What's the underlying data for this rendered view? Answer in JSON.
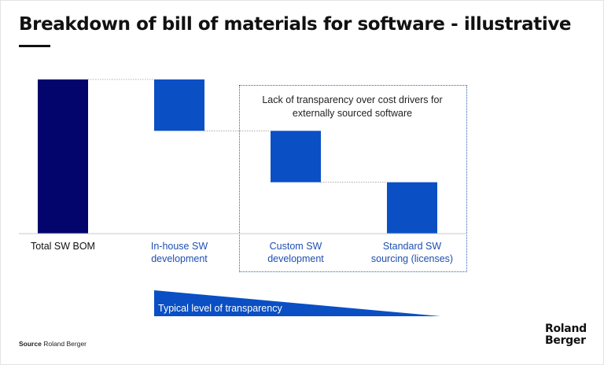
{
  "title": "Breakdown of bill of materials for software - illustrative",
  "colors": {
    "total": "#03056c",
    "segment": "#0a4fc4",
    "label_total": "#111111",
    "label_segment": "#1e4fb0"
  },
  "chart_data": {
    "type": "bar",
    "subtype": "waterfall",
    "categories": [
      "Total SW BOM",
      "In-house SW\ndevelopment",
      "Custom SW\ndevelopment",
      "Standard SW\nsourcing (licenses)"
    ],
    "values": [
      3,
      1,
      1,
      1
    ],
    "title": "Breakdown of bill of materials for software - illustrative",
    "xlabel": "",
    "ylabel": "",
    "grid": false,
    "legend": "none",
    "illustrative": true
  },
  "annotations": {
    "box_note": "Lack of transparency over cost drivers for\nexternally sourced software",
    "transparency_label": "Typical level of transparency"
  },
  "footer": {
    "source_label": "Source",
    "source_text": "Roland Berger",
    "logo_line1": "Roland",
    "logo_line2": "Berger"
  }
}
